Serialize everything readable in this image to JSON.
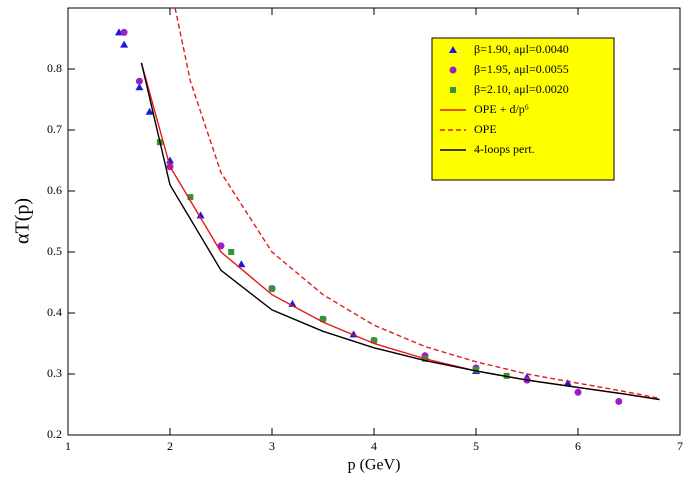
{
  "chart_data": {
    "type": "scatter",
    "xlabel": "p (GeV)",
    "ylabel": "αT(p)",
    "xlim": [
      1,
      7
    ],
    "ylim": [
      0.2,
      0.9
    ],
    "xticks": [
      1,
      2,
      3,
      4,
      5,
      6,
      7
    ],
    "yticks": [
      0.2,
      0.3,
      0.4,
      0.5,
      0.6,
      0.7,
      0.8
    ],
    "series": [
      {
        "name": "β=1.90, aμl=0.0040",
        "color": "#1a1adf",
        "marker": "triangle",
        "x": [
          1.5,
          1.55,
          1.7,
          1.8,
          2.0,
          2.3,
          2.7,
          3.2,
          3.8,
          4.5,
          5.0,
          5.5,
          5.9
        ],
        "values": [
          0.86,
          0.84,
          0.77,
          0.73,
          0.65,
          0.56,
          0.48,
          0.415,
          0.365,
          0.33,
          0.305,
          0.295,
          0.285
        ]
      },
      {
        "name": "β=1.95, aμl=0.0055",
        "color": "#9b1ec8",
        "marker": "circle",
        "x": [
          1.55,
          1.7,
          2.0,
          2.5,
          3.0,
          3.5,
          4.0,
          4.5,
          5.0,
          5.5,
          6.0,
          6.4
        ],
        "values": [
          0.86,
          0.78,
          0.64,
          0.51,
          0.44,
          0.39,
          0.355,
          0.33,
          0.31,
          0.29,
          0.27,
          0.255
        ]
      },
      {
        "name": "β=2.10, aμl=0.0020",
        "color": "#2e9a2e",
        "marker": "square",
        "x": [
          1.9,
          2.2,
          2.6,
          3.0,
          3.5,
          4.0,
          4.5,
          5.0,
          5.3
        ],
        "values": [
          0.68,
          0.59,
          0.5,
          0.44,
          0.39,
          0.355,
          0.325,
          0.307,
          0.297
        ]
      },
      {
        "name": "OPE + d/p⁶",
        "color": "#e41a1a",
        "marker": "line",
        "x": [
          1.72,
          2.0,
          2.5,
          3.0,
          3.5,
          4.0,
          4.5,
          5.0,
          5.5,
          6.0,
          6.5,
          6.8
        ],
        "values": [
          0.81,
          0.64,
          0.5,
          0.43,
          0.385,
          0.35,
          0.325,
          0.305,
          0.29,
          0.278,
          0.266,
          0.258
        ]
      },
      {
        "name": "OPE",
        "color": "#e41a1a",
        "marker": "dashed",
        "x": [
          2.05,
          2.2,
          2.5,
          3.0,
          3.5,
          4.0,
          4.5,
          5.0,
          5.5,
          6.0,
          6.5,
          6.8
        ],
        "values": [
          0.9,
          0.78,
          0.63,
          0.5,
          0.43,
          0.38,
          0.345,
          0.32,
          0.3,
          0.285,
          0.27,
          0.26
        ]
      },
      {
        "name": "4-loops pert.",
        "color": "#000000",
        "marker": "line",
        "x": [
          1.72,
          2.0,
          2.5,
          3.0,
          3.5,
          4.0,
          4.5,
          5.0,
          5.5,
          6.0,
          6.5,
          6.8
        ],
        "values": [
          0.81,
          0.61,
          0.47,
          0.405,
          0.37,
          0.343,
          0.322,
          0.305,
          0.29,
          0.278,
          0.266,
          0.258
        ]
      }
    ]
  }
}
